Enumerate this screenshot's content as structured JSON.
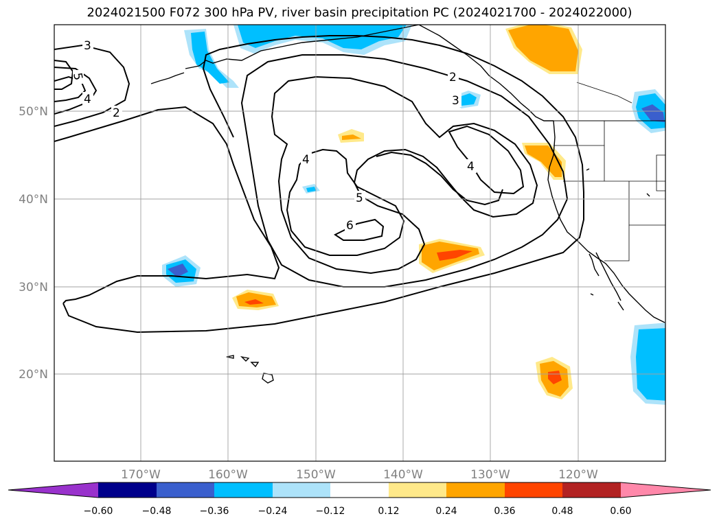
{
  "title": "2024021500 F072 300 hPa PV, river basin precipitation PC (2024021700 - 2024022000)",
  "map": {
    "lat_ticks": [
      "50°N",
      "40°N",
      "30°N",
      "20°N"
    ],
    "lon_ticks": [
      "170°W",
      "160°W",
      "150°W",
      "140°W",
      "130°W",
      "120°W"
    ],
    "gridlines": true,
    "contour_labels": [
      "3",
      "5",
      "4",
      "2",
      "4",
      "5",
      "6",
      "4",
      "2",
      "3"
    ],
    "pv_contour_levels": [
      2,
      3,
      4,
      5,
      6
    ]
  },
  "colorbar": {
    "extend": "both",
    "colors": [
      "#9932CC",
      "#00008B",
      "#3A5FCD",
      "#00BFFF",
      "#ADE3FA",
      "#FFFFFF",
      "#FFE98A",
      "#FFA500",
      "#FF4500",
      "#B22222",
      "#FF88AA"
    ],
    "tick_labels": [
      "−0.60",
      "−0.48",
      "−0.36",
      "−0.24",
      "−0.12",
      "0.12",
      "0.24",
      "0.36",
      "0.48",
      "0.60"
    ]
  }
}
